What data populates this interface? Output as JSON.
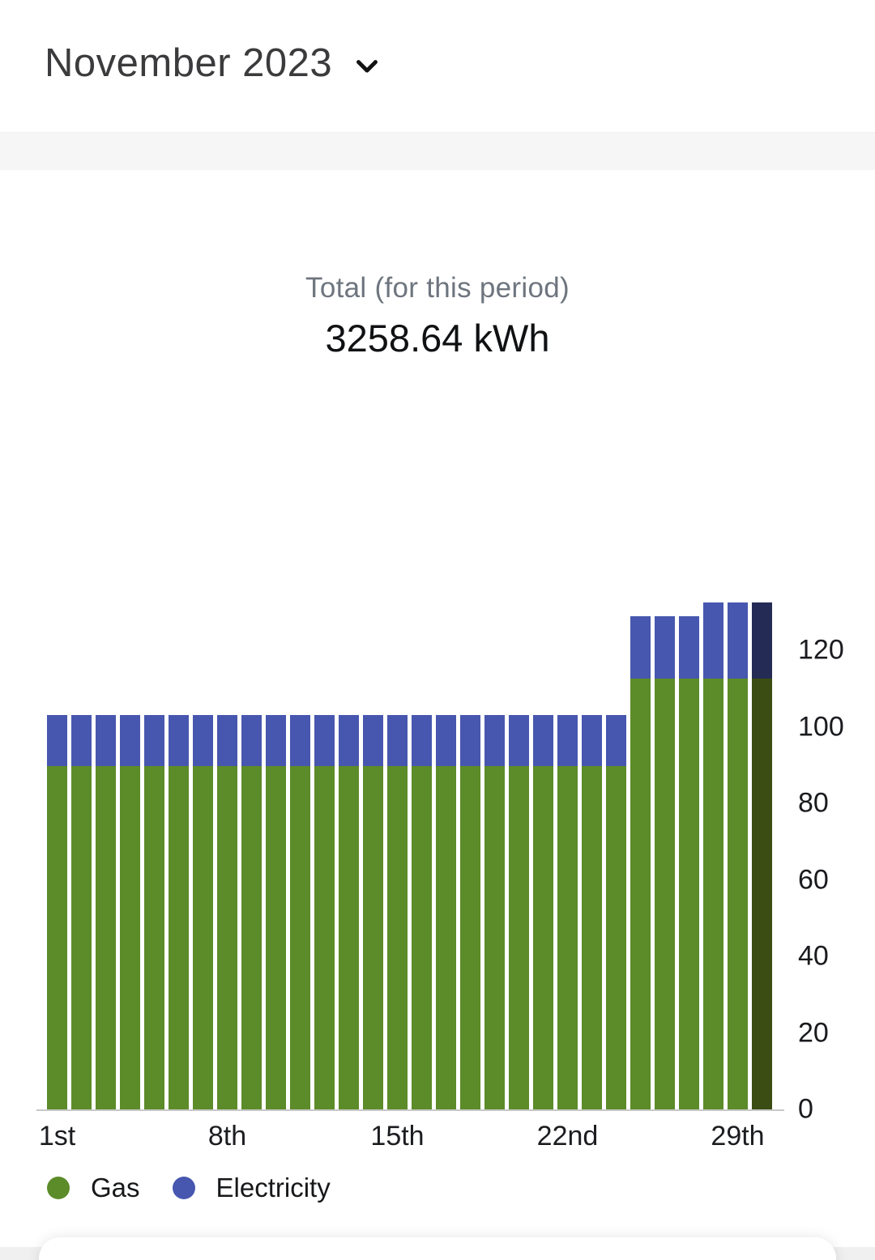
{
  "header": {
    "month_label": "November 2023"
  },
  "total": {
    "label": "Total (for this period)",
    "value": "3258.64 kWh"
  },
  "legend": {
    "gas": "Gas",
    "electricity": "Electricity"
  },
  "chart_data": {
    "type": "bar",
    "stacked": true,
    "unit": "kWh",
    "title": "Total (for this period)",
    "total_value": "3258.64 kWh",
    "series_names": [
      "Gas",
      "Electricity"
    ],
    "legend_position": "bottom-left",
    "y_axis_side": "right",
    "grid": false,
    "ylim": [
      0,
      134
    ],
    "yticks": [
      0,
      20,
      40,
      60,
      80,
      100,
      120
    ],
    "xticks": [
      {
        "day": 1,
        "label": "1st"
      },
      {
        "day": 8,
        "label": "8th"
      },
      {
        "day": 15,
        "label": "15th"
      },
      {
        "day": 22,
        "label": "22nd"
      },
      {
        "day": 29,
        "label": "29th"
      }
    ],
    "colors": {
      "gas": "#5c8b29",
      "electricity": "#4757af",
      "gas_dark": "#3b4d13",
      "electricity_dark": "#242b55",
      "axis_line": "#c8c8c8"
    },
    "days": [
      {
        "day": 1,
        "gas": 89.8,
        "electricity": 13.3
      },
      {
        "day": 2,
        "gas": 89.8,
        "electricity": 13.3
      },
      {
        "day": 3,
        "gas": 89.8,
        "electricity": 13.3
      },
      {
        "day": 4,
        "gas": 89.8,
        "electricity": 13.3
      },
      {
        "day": 5,
        "gas": 89.8,
        "electricity": 13.3
      },
      {
        "day": 6,
        "gas": 89.8,
        "electricity": 13.3
      },
      {
        "day": 7,
        "gas": 89.8,
        "electricity": 13.3
      },
      {
        "day": 8,
        "gas": 89.8,
        "electricity": 13.3
      },
      {
        "day": 9,
        "gas": 89.8,
        "electricity": 13.3
      },
      {
        "day": 10,
        "gas": 89.8,
        "electricity": 13.3
      },
      {
        "day": 11,
        "gas": 89.8,
        "electricity": 13.3
      },
      {
        "day": 12,
        "gas": 89.8,
        "electricity": 13.3
      },
      {
        "day": 13,
        "gas": 89.8,
        "electricity": 13.3
      },
      {
        "day": 14,
        "gas": 89.8,
        "electricity": 13.3
      },
      {
        "day": 15,
        "gas": 89.8,
        "electricity": 13.3
      },
      {
        "day": 16,
        "gas": 89.8,
        "electricity": 13.3
      },
      {
        "day": 17,
        "gas": 89.8,
        "electricity": 13.3
      },
      {
        "day": 18,
        "gas": 89.8,
        "electricity": 13.3
      },
      {
        "day": 19,
        "gas": 89.8,
        "electricity": 13.3
      },
      {
        "day": 20,
        "gas": 89.8,
        "electricity": 13.3
      },
      {
        "day": 21,
        "gas": 89.8,
        "electricity": 13.3
      },
      {
        "day": 22,
        "gas": 89.8,
        "electricity": 13.3
      },
      {
        "day": 23,
        "gas": 89.8,
        "electricity": 13.3
      },
      {
        "day": 24,
        "gas": 89.8,
        "electricity": 13.3
      },
      {
        "day": 25,
        "gas": 112.6,
        "electricity": 16.3
      },
      {
        "day": 26,
        "gas": 112.6,
        "electricity": 16.3
      },
      {
        "day": 27,
        "gas": 112.6,
        "electricity": 16.3
      },
      {
        "day": 28,
        "gas": 112.6,
        "electricity": 19.9
      },
      {
        "day": 29,
        "gas": 112.6,
        "electricity": 19.9
      },
      {
        "day": 30,
        "gas": 112.6,
        "electricity": 19.9,
        "dark": true
      }
    ]
  }
}
